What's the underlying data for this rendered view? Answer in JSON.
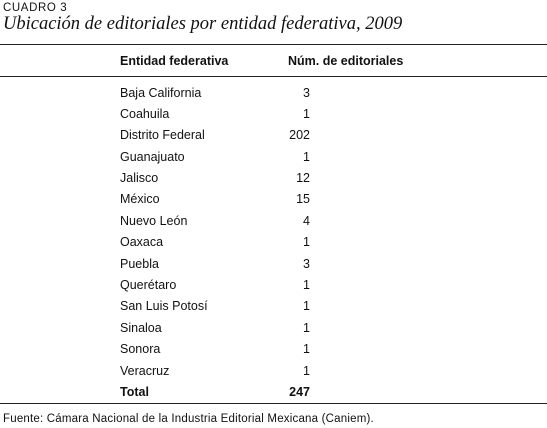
{
  "table_label": "CUADRO 3",
  "title": "Ubicación de editoriales por entidad federativa, 2009",
  "columns": {
    "state": "Entidad federativa",
    "count": "Núm. de editoriales"
  },
  "rows": [
    {
      "state": "Baja California",
      "count": "3"
    },
    {
      "state": "Coahuila",
      "count": "1"
    },
    {
      "state": "Distrito Federal",
      "count": "202"
    },
    {
      "state": "Guanajuato",
      "count": "1"
    },
    {
      "state": "Jalisco",
      "count": "12"
    },
    {
      "state": "México",
      "count": "15"
    },
    {
      "state": "Nuevo León",
      "count": "4"
    },
    {
      "state": "Oaxaca",
      "count": "1"
    },
    {
      "state": "Puebla",
      "count": "3"
    },
    {
      "state": "Querétaro",
      "count": "1"
    },
    {
      "state": "San Luis Potosí",
      "count": "1"
    },
    {
      "state": "Sinaloa",
      "count": "1"
    },
    {
      "state": "Sonora",
      "count": "1"
    },
    {
      "state": "Veracruz",
      "count": "1"
    }
  ],
  "total": {
    "state": "Total",
    "count": "247"
  },
  "source": "Fuente: Cámara Nacional de la Industria Editorial Mexicana (Caniem)."
}
